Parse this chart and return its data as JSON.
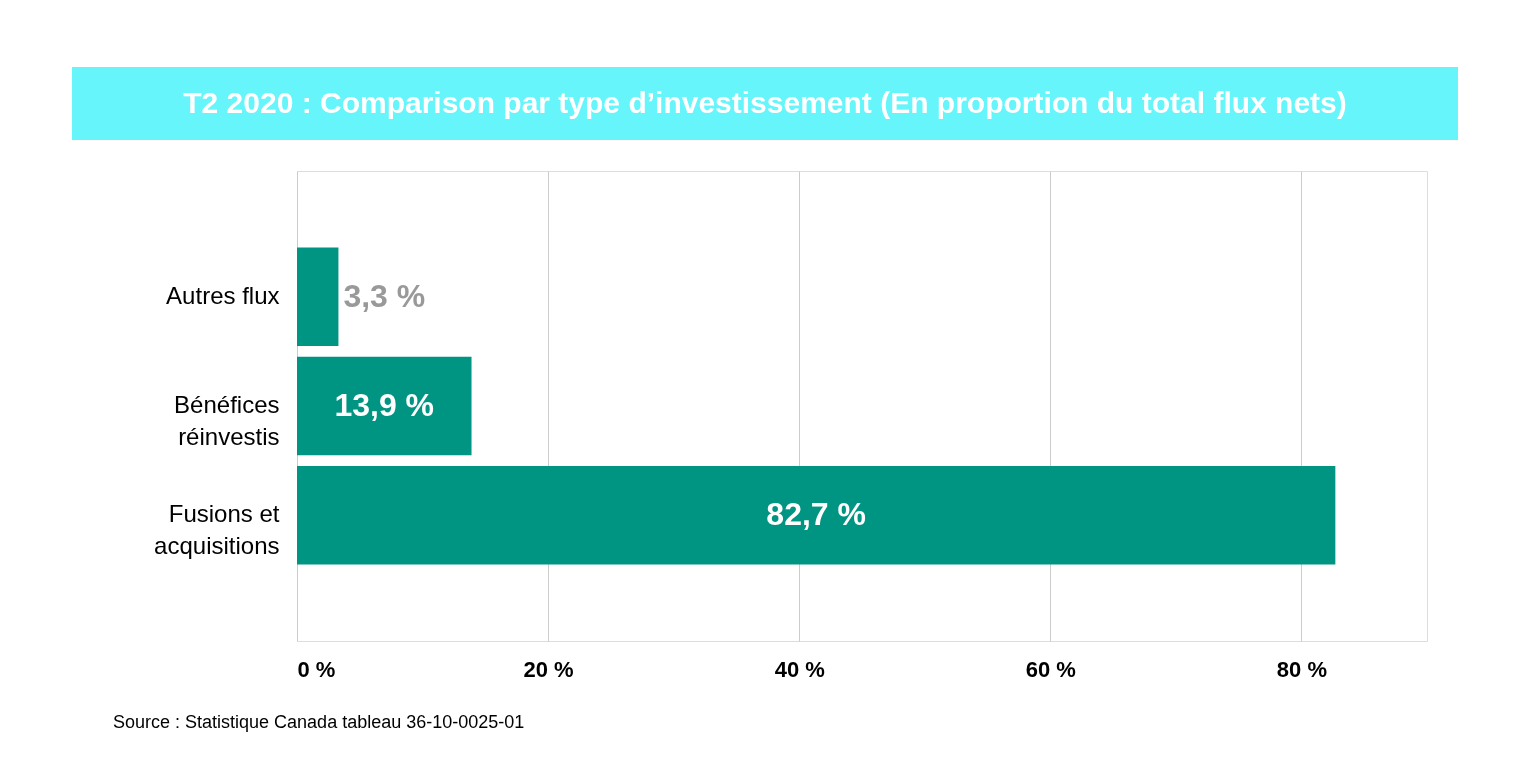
{
  "chart_data": {
    "type": "bar",
    "orientation": "horizontal",
    "title": "T2 2020 : Comparison par type d’investissement (En proportion du total flux nets)",
    "categories": [
      "Autres flux",
      "Bénéfices réinvestis",
      "Fusions et acquisitions"
    ],
    "values": [
      3.3,
      13.9,
      82.7
    ],
    "value_labels": [
      "3,3 %",
      "13,9 %",
      "82,7 %"
    ],
    "color": "#009483",
    "xlim": [
      0,
      90
    ],
    "xticks": [
      {
        "value": 0,
        "label": "0 %"
      },
      {
        "value": 20,
        "label": "20 %"
      },
      {
        "value": 40,
        "label": "40 %"
      },
      {
        "value": 60,
        "label": "60 %"
      },
      {
        "value": 80,
        "label": "80 %"
      }
    ],
    "grid": "x",
    "annotations": [
      "Source : Statistique Canada tableau 36-10-0025-01"
    ]
  }
}
